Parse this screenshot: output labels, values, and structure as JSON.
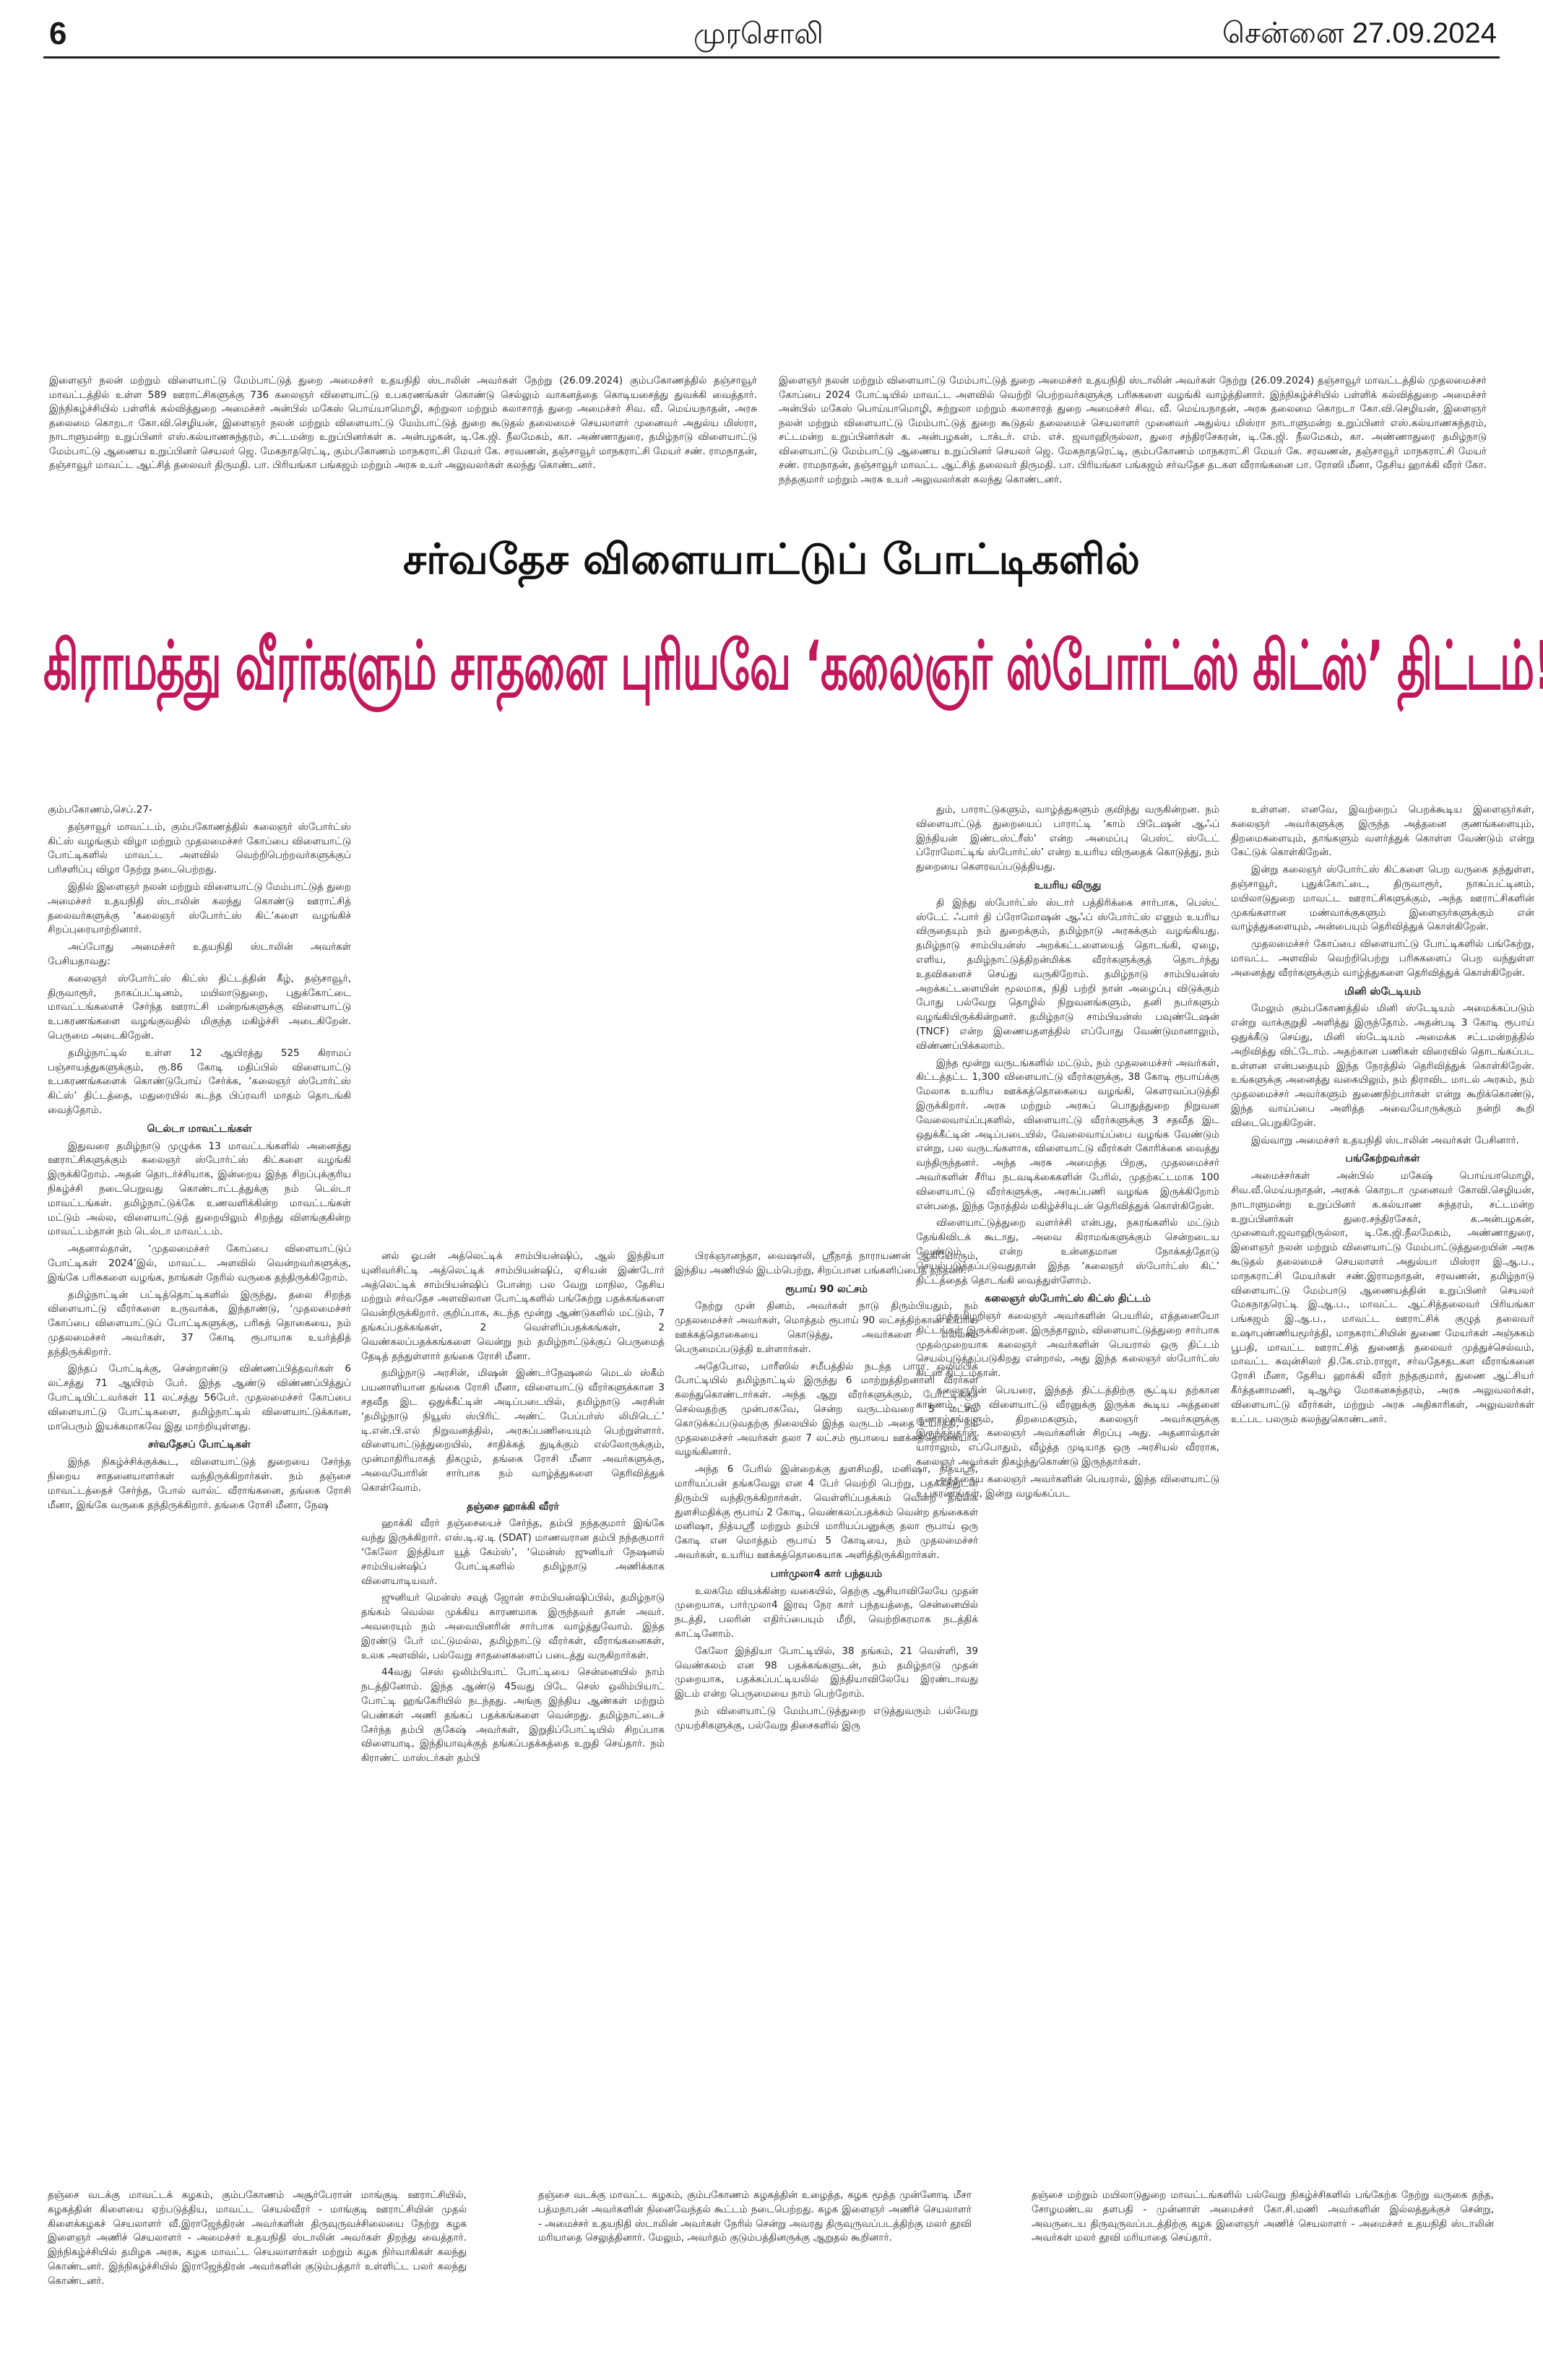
{
  "header": {
    "page_number": "6",
    "masthead": "முரசொலி",
    "date": "சென்னை 27.09.2024"
  },
  "captions": {
    "left": "இளைஞர் நலன் மற்றும் விளையாட்டு மேம்பாட்டுத் துறை அமைச்சர் உதயநிதி ஸ்டாலின் அவர்கள் நேற்று (26.09.2024) கும்பகோணத்தில் தஞ்சாவூர் மாவட்டத்தில் உள்ள 589 ஊராட்சிகளுக்கு 736 கலைஞர் விளையாட்டு உபகரணங்கள் கொண்டு செல்லும் வாகனத்தை கொடியசைத்து துவக்கி வைத்தார். இந்நிகழ்ச்சியில் பள்ளிக் கல்வித்துறை அமைச்சர் அன்பில் மகேஸ் பொய்யாமொழி, சுற்றுலா மற்றும் கலாசாரத் துறை அமைச்சர் சிவ. வீ. மெய்யநாதன், அரசு தலைமை கொறடா கோ.வி.செழியன், இளைஞர் நலன் மற்றும் விளையாட்டு மேம்பாட்டுத் துறை கூடுதல் தலைமைச் செயலாளர் முனைவர் அதுல்ய மிஸ்ரா, நாடாளுமன்ற உறுப்பினர் எஸ்.கல்யாணசுந்தரம், சட்டமன்ற உறுப்பினர்கள் க. அன்பழகன், டி.கே.ஜி. நீலமேகம், கா. அண்ணாதுரை, தமிழ்நாடு விளையாட்டு மேம்பாட்டு ஆணைய உறுப்பினர் செயலர் ஜெ. மேகநாதரெட்டி, கும்பகோணம் மாநகராட்சி மேயர் கே. சரவணன், தஞ்சாவூர் மாநகராட்சி மேயர் சண். ராமநாதன், தஞ்சாவூர் மாவட்ட ஆட்சித் தலைவர் திருமதி. பா. பிரியங்கா பங்கஜம் மற்றும் அரசு உயர் அலுவலர்கள் கலந்து கொண்டனர்.",
    "right": "இளைஞர் நலன் மற்றும் விளையாட்டு மேம்பாட்டுத் துறை அமைச்சர் உதயநிதி ஸ்டாலின் அவர்கள் நேற்று (26.09.2024) தஞ்சாவூர் மாவட்டத்தில் முதலமைச்சர் கோப்பை 2024 போட்டியில் மாவட்ட அளவில் வெற்றி பெற்றவர்களுக்கு பரிசுகளை வழங்கி வாழ்த்தினார். இந்நிகழ்ச்சியில் பள்ளிக் கல்வித்துறை அமைச்சர் அன்பில் மகேஸ் பொய்யாமொழி, சுற்றுலா மற்றும் கலாசாரத் துறை அமைச்சர் சிவ. வீ. மெய்யநாதன், அரசு தலைமை கொறடா கோ.வி.செழியன், இளைஞர் நலன் மற்றும் விளையாட்டு மேம்பாட்டுத் துறை கூடுதல் தலைமைச் செயலாளர் முனைவர் அதுல்ய மிஸ்ரா நாடாளுமன்ற உறுப்பினர் எஸ்.கல்யாணசுந்தரம், சட்டமன்ற உறுப்பினர்கள் க. அன்பழகன், டாக்டர். எம். எச். ஜவாஹிருல்லா, துரை சந்திரசேகரன், டி.கே.ஜி. நீலமேகம், கா. அண்ணாதுரை தமிழ்நாடு விளையாட்டு மேம்பாட்டு ஆணைய உறுப்பினர் செயலர் ஜெ. மேகநாதரெட்டி, கும்பகோணம் மாநகராட்சி மேயர் கே. சரவணன், தஞ்சாவூர் மாநகராட்சி மேயர் சண். ராமநாதன், தஞ்சாவூர் மாவட்ட ஆட்சித் தலைவர் திருமதி. பா. பிரியங்கா பங்கஜம் சர்வதேச தடகள வீராங்கனை பா. ரோஸி மீனா, தேசிய ஹாக்கி வீரர் கோ. நந்தகுமார் மற்றும் அரசு உயர் அலுவலர்கள் கலந்து கொண்டனர்."
  },
  "kicker": "சர்வதேச விளையாட்டுப் போட்டிகளில்",
  "headline": "கிராமத்து வீரர்களும் சாதனை புரியவே ‘கலைஞர் ஸ்போர்ட்ஸ் கிட்ஸ்’ திட்டம்!",
  "article": {
    "c1": [
      {
        "t": "p",
        "d": "கும்பகோணம்,செப்.27-"
      },
      {
        "t": "p",
        "d": "தஞ்சாவூர் மாவட்டம், கும்பகோணத்தில் கலைஞர் ஸ்போர்ட்ஸ் கிட்ஸ் வழங்கும் விழா மற்றும் முதலமைச்சர் கோப்பை விளையாட்டு போட்டிகளில் மாவட்ட அளவில் வெற்றிபெற்றவர்களுக்குப் பரிசளிப்பு விழா நேற்று நடைபெற்றது."
      },
      {
        "t": "p",
        "d": "இதில் இளைஞர் நலன் மற்றும் விளையாட்டு மேம்பாட்டுத் துறை அமைச்சர் உதயநிதி ஸ்டாலின் கலந்து கொண்டு ஊராட்சித் தலைவர்களுக்கு ‘கலைஞர் ஸ்போர்ட்ஸ் கிட்’களை வழங்கிச் சிறப்புரையாற்றினார்."
      },
      {
        "t": "p",
        "d": "அப்போது அமைச்சர் உதயநிதி ஸ்டாலின் அவர்கள் பேசியதாவது:"
      },
      {
        "t": "p",
        "d": "கலைஞர் ஸ்போர்ட்ஸ் கிட்ஸ் திட்டத்தின் கீழ், தஞ்சாவூர், திருவாரூர், நாகப்பட்டினம், மயிலாடுதுறை, புதுக்கோட்டை மாவட்டங்களைச் சேர்ந்த ஊராட்சி மன்றங்களுக்கு விளையாட்டு உபகரணங்களை வழங்குவதில் மிகுந்த மகிழ்ச்சி அடைகிறேன். பெருமை அடைகிறேன்."
      },
      {
        "t": "p",
        "d": "தமிழ்நாட்டில் உள்ள 12 ஆயிரத்து 525 கிராமப் பஞ்சாயத்துகளுக்கும், ரூ.86 கோடி மதிப்பில் விளையாட்டு உபகரணங்களைக் கொண்டுபோய் சேர்க்க, ‘கலைஞர் ஸ்போர்ட்ஸ் கிட்ஸ்’ திட்டத்தை, மதுரையில் கடந்த பிப்ரவரி மாதம் தொடங்கி வைத்தோம்."
      },
      {
        "t": "h",
        "d": "டெல்டா மாவட்டங்கள்"
      },
      {
        "t": "p",
        "d": "இதுவரை தமிழ்நாடு முழுக்க 13 மாவட்டங்களில் அனைத்து ஊராட்சிகளுக்கும் கலைஞர் ஸ்போர்ட்ஸ் கிட்களை வழங்கி இருக்கிறோம். அதன் தொடர்ச்சியாக, இன்றைய இந்த சிறப்புக்குரிய நிகழ்ச்சி நடைபெறுவது கொண்டாட்டத்துக்கு நம் டெல்டா மாவட்டங்கள். தமிழ்நாட்டுக்கே உணவளிக்கின்ற மாவட்டங்கள் மட்டும் அல்ல, விளையாட்டுத் துறையிலும் சிறந்து விளங்குகின்ற மாவட்டம்தான் நம் டெல்டா மாவட்டம்."
      },
      {
        "t": "p",
        "d": "அதனால்தான், ‘முதலமைச்சர் கோப்பை விளையாட்டுப் போட்டிகள் 2024’இல், மாவட்ட அளவில் வென்றவர்களுக்கு, இங்கே பரிசுகளை வழங்க, நாங்கள் நேரில் வருகை தந்திருக்கிறோம்."
      },
      {
        "t": "p",
        "d": "தமிழ்நாட்டின் பட்டித்தொட்டிகளில் இருந்து, தலை சிறந்த விளையாட்டு வீரர்களை உருவாக்க, இந்தாண்டு, ‘முதலமைச்சர் கோப்பை விளையாட்டுப் போட்டிகளுக்கு, பரிசுத் தொகையை, நம் முதலமைச்சர் அவர்கள், 37 கோடி ரூபாயாக உயர்த்தித் தந்திருக்கிறார்."
      },
      {
        "t": "p",
        "d": "இந்தப் போட்டிக்கு, சென்றாண்டு விண்ணப்பித்தவர்கள் 6 லட்சத்து 71 ஆயிரம் பேர். இந்த ஆண்டு விண்ணப்பித்துப் போட்டியிட்டவர்கள் 11 லட்சத்து 56பேர். முதலமைச்சர் கோப்பை விளையாட்டு போட்டிகளை, தமிழ்நாட்டில் விளையாட்டுக்கான, மாபெரும் இயக்கமாகவே இது மாற்றியுள்ளது."
      },
      {
        "t": "h",
        "d": "சர்வதேசப் போட்டிகள்"
      },
      {
        "t": "p",
        "d": "இந்த நிகழ்ச்சிக்குக்கூட, விளையாட்டுத் துறையை சேர்ந்த நிறைய சாதனையாளர்கள் வந்திருக்கிறார்கள். நம் தஞ்சை மாவட்டத்தைச் சேர்ந்த, போல் வால்ட் வீராங்கனை, தங்கை ரோசி மீனா, இங்கே வருகை தந்திருக்கிறார். தங்கை ரோசி மீனா, நேஷ"
      }
    ],
    "c2": [
      {
        "t": "p",
        "d": "னல் ஓபன் அத்லெட்டிக் சாம்பியன்ஷிப், ஆல் இந்தியா யுனிவர்சிட்டி அத்லெட்டிக் சாம்பியன்ஷிப், ஏசியன் இண்டோர் அத்லெட்டிக் சாம்பியன்ஷிப் போன்ற பல வேறு மாநில, தேசிய மற்றும் சர்வதேச அளவிலான போட்டிகளில் பங்கேற்று பதக்கங்களை வென்றிருக்கிறார். குறிப்பாக, கடந்த மூன்று ஆண்டுகளில் மட்டும், 7 தங்கப்பதக்கங்கள், 2 வெள்ளிப்பதக்கங்கள், 2 வெண்கலப்பதக்கங்களை வென்று நம் தமிழ்நாட்டுக்குப் பெருமைத் தேடித் தந்துள்ளார் தங்கை ரோசி மீனா."
      },
      {
        "t": "p",
        "d": "தமிழ்நாடு அரசின், மிஷன் இண்டர்நேஷனல் மெடல் ஸ்கீம் பயனாளியான தங்கை ரோசி மீனா, விளையாட்டு வீரர்களுக்கான 3 சதவீத இட ஒதுக்கீட்டின் அடிப்படையில், தமிழ்நாடு அரசின் ‘தமிழ்நாடு நியூஸ் ஸ்பிரிட் அண்ட் பேப்பர்ஸ் லிமிடெட்’ டி.என்.பி.எல் நிறுவனத்தில், அரசுப்பணியையும் பெற்றுள்ளார். விளையாட்டுத்துறையில், சாதிக்கத் துடிக்கும் எல்லோருக்கும், முன்மாதிரியாகத் திகழும், தங்கை ரோசி மீனா அவர்களுக்கு, அவையோரின் சார்பாக நம் வாழ்த்துகளை தெரிவித்துக் கொள்வோம்."
      },
      {
        "t": "h",
        "d": "தஞ்சை ஹாக்கி வீரர்"
      },
      {
        "t": "p",
        "d": "ஹாக்கி வீரர் தஞ்சையைச் சேர்ந்த, தம்பி நந்தகுமார் இங்கே வந்து இருக்கிறார். எஸ்.டி.ஏ.டி (SDAT) மாணவரான தம்பி நந்தகுமார் ‘கேலோ இந்தியா யூத் கேம்ஸ்’, ‘மென்ஸ் ஜுனியர் நேஷனல் சாம்பியன்ஷிப் போட்டிகளில் தமிழ்நாடு அணிக்காக விளையாடியவர்."
      },
      {
        "t": "p",
        "d": "ஜுனியர் மென்ஸ் சவுத் ஜோன் சாம்பியன்ஷிப்பில், தமிழ்நாடு தங்கம் வெல்ல முக்கிய காரணமாக இருந்தவர் தான் அவர். அவரையும் நம் அவையினரின் சார்பாக வாழ்த்துவோம். இந்த இரண்டு பேர் மட்டுமல்ல, தமிழ்நாட்டு வீரர்கள், வீராங்கனைகள், உலக அளவில், பல்வேறு சாதனைகளைப் படைத்து வருகிறார்கள்."
      },
      {
        "t": "p",
        "d": "44வது செஸ் ஒலிம்பியாட் போட்டியை சென்னையில் நாம் நடத்தினோம். இந்த ஆண்டு 45வது பிடே செஸ் ஒலிம்பியாட் போட்டி ஹங்கேரியில் நடந்தது. அங்கு இந்திய ஆண்கள் மற்றும் பெண்கள் அணி தங்கப் பதக்கங்களை வென்றது. தமிழ்நாட்டைச் சேர்ந்த தம்பி குகேஷ் அவர்கள், இறுதிப்போட்டியில் சிறப்பாக விளையாடி, இந்தியாவுக்குத் தங்கப்பதக்கத்தை உறுதி செய்தார். நம் கிராண்ட் மாஸ்டர்கள் தம்பி"
      }
    ],
    "c3": [
      {
        "t": "p",
        "d": "பிரக்ஞானந்தா, வைஷாலி, ஸ்ரீநாத் நாராயணன் ஆகியோரும், இந்திய அணியில் இடம்பெற்று, சிறப்பான பங்களிப்பைத் தந்தனர்."
      },
      {
        "t": "h",
        "d": "ரூபாய் 90 லட்சம்"
      },
      {
        "t": "p",
        "d": "நேற்று முன் தினம், அவர்கள் நாடு திரும்பியதும், நம் முதலமைச்சர் அவர்கள், மொத்தம் ரூபாய் 90 லட்சத்திற்கான உயரிய ஊக்கத்தொகையை கொடுத்து, அவர்களை எல்லாம் பெருமைப்படுத்தி உள்ளார்கள்."
      },
      {
        "t": "p",
        "d": "அதேபோல, பாரீஸில் சமீபத்தில் நடந்த பாரா ஒலிம்பிக் போட்டியில் தமிழ்நாட்டில் இருந்து 6 மாற்றுத்திறனாளி வீரர்கள் கலந்துகொண்டார்கள். அந்த ஆறு வீரர்களுக்கும், போட்டிக்குச் செல்வதற்கு முன்பாகவே, சென்ற வருடம்வரை 5 லட்சம் கொடுக்கப்படுவதற்கு நிலையில் இந்த வருடம் அதை உயர்த்தி, நம் முதலமைச்சர் அவர்கள் தலா 7 லட்சம் ரூபாயை ஊக்கத்தொகையாக வழங்கினார்."
      },
      {
        "t": "p",
        "d": "அந்த 6 பேரில் இன்றைக்கு துளசிமதி, மனிஷா, நித்யஸ்ரீ, மாரியப்பன் தங்கவேலு என 4 பேர் வெற்றி பெற்று, பதக்கத்துடன் திரும்பி வந்திருக்கிறார்கள். வெள்ளிப்பதக்கம் வென்ற தங்கை துளசிமதிக்கு ரூபாய் 2 கோடி, வெண்கலப்பதக்கம் வென்ற தங்கைகள் மனிஷா, நித்யஸ்ரீ மற்றும் தம்பி மாரியப்பனுக்கு தலா ரூபாய் ஒரு கோடி என மொத்தம் ரூபாய் 5 கோடியை, நம் முதலமைச்சர் அவர்கள், உயரிய ஊக்கத்தொகையாக அளித்திருக்கிறார்கள்."
      },
      {
        "t": "h",
        "d": "பார்முலா4 கார் பந்தயம்"
      },
      {
        "t": "p",
        "d": "உலகமே வியக்கின்ற வகையில், தெற்கு ஆசியாவிலேயே முதன் முறையாக, பார்முலா4 இரவு நேர கார் பந்தயத்தை, சென்னையில் நடத்தி, பலரின் எதிர்ப்பையும் மீறி, வெற்றிகரமாக நடத்திக் காட்டினோம்."
      },
      {
        "t": "p",
        "d": "கேலோ இந்தியா போட்டியில், 38 தங்கம், 21 வெள்ளி, 39 வெண்கலம் என 98 பதக்கங்களுடன், நம் தமிழ்நாடு முதன் முறையாக, பதக்கப்பட்டியலில் இந்தியாவிலேயே இரண்டாவது இடம் என்ற பெருமையை நாம் பெற்றோம்."
      },
      {
        "t": "p",
        "d": "நம் விளையாட்டு மேம்பாட்டுத்துறை எடுத்துவரும் பல்வேறு முயற்சிகளுக்கு, பல்வேறு திசைகளில் இரு"
      }
    ],
    "c4": [
      {
        "t": "p",
        "d": "தும், பாராட்டுகளும், வாழ்த்துகளும் குவிந்து வருகின்றன. நம் விளையாட்டுத் துறையைப் பாராட்டி ‘காம் பிடேஷன் ஆஃப் இந்தியன் இண்டஸ்ட்ரீஸ்’ என்ற அமைப்பு பெஸ்ட் ஸ்டேட் ப்ரோமோட்டிங் ஸ்போர்ட்ஸ்’ என்ற உயரிய விருதைக் கொடுத்து, நம் துறையை கௌரவப்படுத்தியது."
      },
      {
        "t": "h",
        "d": "உயரிய விருது"
      },
      {
        "t": "p",
        "d": "தி இந்து ஸ்போர்ட்ஸ் ஸ்டார் பத்திரிக்கை சார்பாக, பெஸ்ட் ஸ்டேட் ஃபார் தி ப்ரோமோஷன் ஆஃப் ஸ்போர்ட்ஸ் எனும் உயரிய விருதையும் நம் துறைக்கும், தமிழ்நாடு அரசுக்கும் வழங்கியது. தமிழ்நாடு சாம்பியன்ஸ் அறக்கட்டளையைத் தொடங்கி, ஏழை, எளிய, தமிழ்நாட்டுத்திறன்மிக்க வீரர்களுக்குத் தொடர்ந்து உதவிகளைச் செய்து வருகிறோம். தமிழ்நாடு சாம்பியன்ஸ் அறக்கட்டளையின் மூலமாக, நிதி பற்றி நான் அழைப்பு விடுக்கும் போது பல்வேறு தொழில் நிறுவனங்களும், தனி நபர்களும் வழங்கியிருக்கின்றனர். தமிழ்நாடு சாம்பியன்ஸ் பவுண்டேஷன் (TNCF) என்ற இணையதளத்தில் எப்போது வேண்டுமானாலும், விண்ணப்பிக்கலாம்."
      },
      {
        "t": "p",
        "d": "இந்த மூன்று வருடங்களில் மட்டும், நம் முதலமைச்சர் அவர்கள், கிட்டத்தட்ட 1,300 விளையாட்டு வீரர்களுக்கு, 38 கோடி ரூபாய்க்கு மேலாக உயரிய ஊக்கத்தொகையை வழங்கி, கௌரவப்படுத்தி இருக்கிறார். அரசு மற்றும் அரசுப் பொதுத்துறை நிறுவன வேலைவாய்ப்புகளில், விளையாட்டு வீரர்களுக்கு 3 சதவீத இட ஒதுக்கீட்டின் அடிப்படையில், வேலைவாய்ப்பை வழங்க வேண்டும் என்று, பல வருடங்களாக, விளையாட்டு வீரர்கள் கோரிக்கை வைத்து வந்திருந்தனர். அந்த அரசு அமைந்த பிறகு, முதலமைச்சர் அவர்களின் சீரிய நடவடிக்கைகளின் பேரில், முதற்கட்டமாக 100 விளையாட்டு வீரர்களுக்கு, அரசுப்பணி வழங்க இருக்கிறோம் என்பதை, இந்த நேரத்தில் மகிழ்ச்சியுடன் தெரிவித்துக் கொள்கிறேன்."
      },
      {
        "t": "p",
        "d": "விளையாட்டுத்துறை வளர்ச்சி என்பது, நகரங்களில் மட்டும் தேங்கிவிடக் கூடாது, அவை கிராமங்களுக்கும் சென்றடைய வேண்டும் என்ற உன்னதமான நோக்கத்தோடு செயல்படுத்தப்படுவதுதான் இந்த ‘கலைஞர் ஸ்போர்ட்ஸ் கிட்’ திட்டத்தைத் தொடங்கி வைத்துள்ளோம்."
      },
      {
        "t": "h",
        "d": "கலைஞர் ஸ்போர்ட்ஸ் கிட்ஸ் திட்டம்"
      },
      {
        "t": "p",
        "d": "முத்தமிழறிஞர் கலைஞர் அவர்களின் பெயரில், எத்தனையோ திட்டங்கள் இருக்கின்றன. இருந்தாலும், விளையாட்டுத்துறை சார்பாக முதல்முறையாக கலைஞர் அவர்களின் பெயரால் ஒரு திட்டம் செயல்படுத்தப்படுகிறது என்றால், அது இந்த கலைஞர் ஸ்போர்ட்ஸ் கிட்ஸ் திட்டம்தான்."
      },
      {
        "t": "p",
        "d": "கலைஞரின் பெயரை, இந்தத் திட்டத்திற்கு சூட்டிய தற்கான காரணம், ஒரு விளையாட்டு வீரனுக்கு இருக்க கூடிய அத்தனை குணாம்சங்களும், திறமைகளும், கலைஞர் அவர்களுக்கு இருந்ததுதான். கலைஞர் அவர்களின் சிறப்பு அது. அதனால்தான் யாராலும், எப்போதும், வீழ்த்த முடியாத ஒரு அரசியல் வீரராக, கலைஞர் அவர்கள் திகழ்ந்துகொண்டு இருந்தார்கள்."
      },
      {
        "t": "p",
        "d": "அத்தகைய கலைஞர் அவர்களின் பெயரால், இந்த விளையாட்டு உபகரணங்கள், இன்று வழங்கப்பட"
      }
    ],
    "c5": [
      {
        "t": "p",
        "d": "உள்ளன. எனவே, இவற்றைப் பெறக்கூடிய இளைஞர்கள், கலைஞர் அவர்களுக்கு இருந்த அத்தனை குணங்களையும், திறமைகளையும், தாங்களும் வளர்த்துக் கொள்ள வேண்டும் என்று கேட்டுக் கொள்கிறேன்."
      },
      {
        "t": "p",
        "d": "இன்று கலைஞர் ஸ்போர்ட்ஸ் கிட்களை பெற வருகை தந்துள்ள, தஞ்சாவூர், புதுக்கோட்டை, திருவாரூர், நாகப்பட்டினம், மயிலாடுதுறை மாவட்ட ஊராட்சிகளுக்கும், அந்த ஊராட்சிகளின் முகங்களான மண்வாக்குகளும் இளைஞர்களுக்கும் என் வாழ்த்துகளையும், அன்பையும் தெரிவித்துக் கொள்கிறேன்."
      },
      {
        "t": "p",
        "d": "முதலமைச்சர் கோப்பை விளையாட்டு போட்டிகளில் பங்கேற்று, மாவட்ட அளவில் வெற்றிபெற்று பரிசுகளைப் பெற வந்துள்ள அனைத்து வீரர்களுக்கும் வாழ்த்துகளை தெரிவித்துக் கொள்கிறேன்."
      },
      {
        "t": "h",
        "d": "மினி ஸ்டேடியம்"
      },
      {
        "t": "p",
        "d": "மேலும் கும்பகோணத்தில் மினி ஸ்டேடியம் அமைக்கப்படும் என்று வாக்குறுதி அளித்து இருந்தோம். அதன்படி 3 கோடி ரூபாய் ஒதுக்கீடு செய்து, மினி ஸ்டேடியம் அமைக்க சட்டமன்றத்தில் அறிவித்து விட்டோம். அதற்கான பணிகள் விரைவில் தொடங்கப்பட உள்ளன என்பதையும் இந்த நேரத்தில் தெரிவித்துக் கொள்கிறேன். உங்களுக்கு அனைத்து வகையிலும், நம் திராவிட மாடல் அரசும், நம் முதலமைச்சர் அவர்களும் துணைநிற்பார்கள் என்று கூறிக்கொண்டு, இந்த வாய்ப்பை அளித்த அவையோருக்கும் நன்றி கூறி விடைபெறுகிறேன்."
      },
      {
        "t": "p",
        "d": "இவ்வாறு அமைச்சர் உதயநிதி ஸ்டாலின் அவர்கள் பேசினார்."
      },
      {
        "t": "h",
        "d": "பங்கேற்றவர்கள்"
      },
      {
        "t": "p",
        "d": "அமைச்சர்கள் அன்பில் மகேஷ் பொய்யாமொழி, சிவ.வீ.மெய்யநாதன், அரசுக் கொறடா முனைவர் கோவி.செழியன், நாடாளுமன்ற உறுப்பினர் க.கல்யாண சுந்தரம், சட்டமன்ற உறுப்பினர்கள் துரை.சந்திரசேகர், க.அன்பழகன், முனைவர்.ஜவாஹிருல்லா, டி.கே.ஜி.நீலமேகம், அண்ணாதுரை, இளைஞர் நலன் மற்றும் விளையாட்டு மேம்பாட்டுத்துறையின் அரசு கூடுதல் தலைமைச் செயலாளர் அதுல்யா மிஸ்ரா இ.ஆ.ப., மாநகராட்சி மேயர்கள் சண்.இராமநாதன், சரவணன், தமிழ்நாடு விளையாட்டு மேம்பாடு ஆணையத்தின் உறுப்பினர் செயலர் மேகநாதரெட்டி இ.ஆ.ப., மாவட்ட ஆட்சித்தலைவர் பிரியங்கா பங்கஜம் இ.ஆ.ப., மாவட்ட ஊராட்சிக் குழுத் தலைவர் உஷாபுண்ணியமூர்த்தி, மாநகராட்சியின் துணை மேயர்கள் அஞ்சுகம் பூபதி, மாவட்ட ஊராட்சித் துணைத் தலைவர் முத்துச்செல்வம், மாவட்ட சுவுன்சிலர் தி.கே.எம்.ராஜா, சர்வதேசதடகள வீராங்கனை ரோசி மீனா, தேசிய ஹாக்கி வீரர் நந்தகுமார், துணை ஆட்சியர் கீர்த்தனாமணி, டிஆர்ஓ மோகனசுந்தரம், அரசு அலுவலர்கள், விளையாட்டு வீரர்கள், மற்றும் அரசு அதிகாரிகள், அலுவலர்கள் உட்பட பலரும் கலந்துகொண்டனர்."
      }
    ]
  },
  "footer": {
    "f1": "தஞ்சை வடக்கு மாவட்டக் கழகம், கும்பகோணம் அசூர்பேரான் மாங்குடி ஊராட்சியில், கழகத்தின் கிளையை ஏற்படுத்திய, மாவட்ட செயல்வீரர் - மாங்குடி ஊராட்சியின் முதல் கிளைக்கழகச் செயலாளர் வீ.இராஜேந்திரன் அவர்களின் திருவுருவச்சிலையை நேற்று கழக இளைஞர் அணிச் செயலாளர் - அமைச்சர் உதயநிதி ஸ்டாலின் அவர்கள் திறந்து வைத்தார். இந்நிகழ்ச்சியில் தமிழக அரசு, கழக மாவட்ட செயலாளர்கள் மற்றும் கழக நிர்வாகிகள் கலந்து கொண்டனர். இந்நிகழ்ச்சியில் இராஜேந்திரன் அவர்களின் குடும்பத்தார் உள்ளிட்ட பலர் கலந்து கொண்டனர்.",
    "f2": "தஞ்சை வடக்கு மாவட்ட கழகம், கும்பகோணம் கழகத்தின் உழைத்த, கழக மூத்த முன்னோடி மீசா பத்மநாபன் அவர்களின் நினைவேந்தல் கூட்டம் நடைபெற்றது. கழக இளைஞர் அணிச் செயலாளர் - அமைச்சர் உதயநிதி ஸ்டாலின் அவர்கள் நேரில் சென்று அவரது திருவுருவப்படத்திற்கு மலர் தூவி மரியாதை செலுத்தினார். மேலும், அவர்தம் குடும்பத்தினருக்கு ஆறுதல் கூறினார்.",
    "f3": "தஞ்சை மற்றும் மயிலாடுதுறை மாவட்டங்களில் பல்வேறு நிகழ்ச்சிகளில் பங்கேற்க நேற்று வருகை தந்த, சோழமண்டல தளபதி - முன்னாள் அமைச்சர் கோ.சி.மணி அவர்களின் இல்லத்துக்குச் சென்று, அவருடைய திருவுருவப்படத்திற்கு கழக இளைஞர் அணிச் செயலாளர் - அமைச்சர் உதயநிதி ஸ்டாலின் அவர்கள் மலர் தூவி மரியாதை செய்தார்."
  }
}
